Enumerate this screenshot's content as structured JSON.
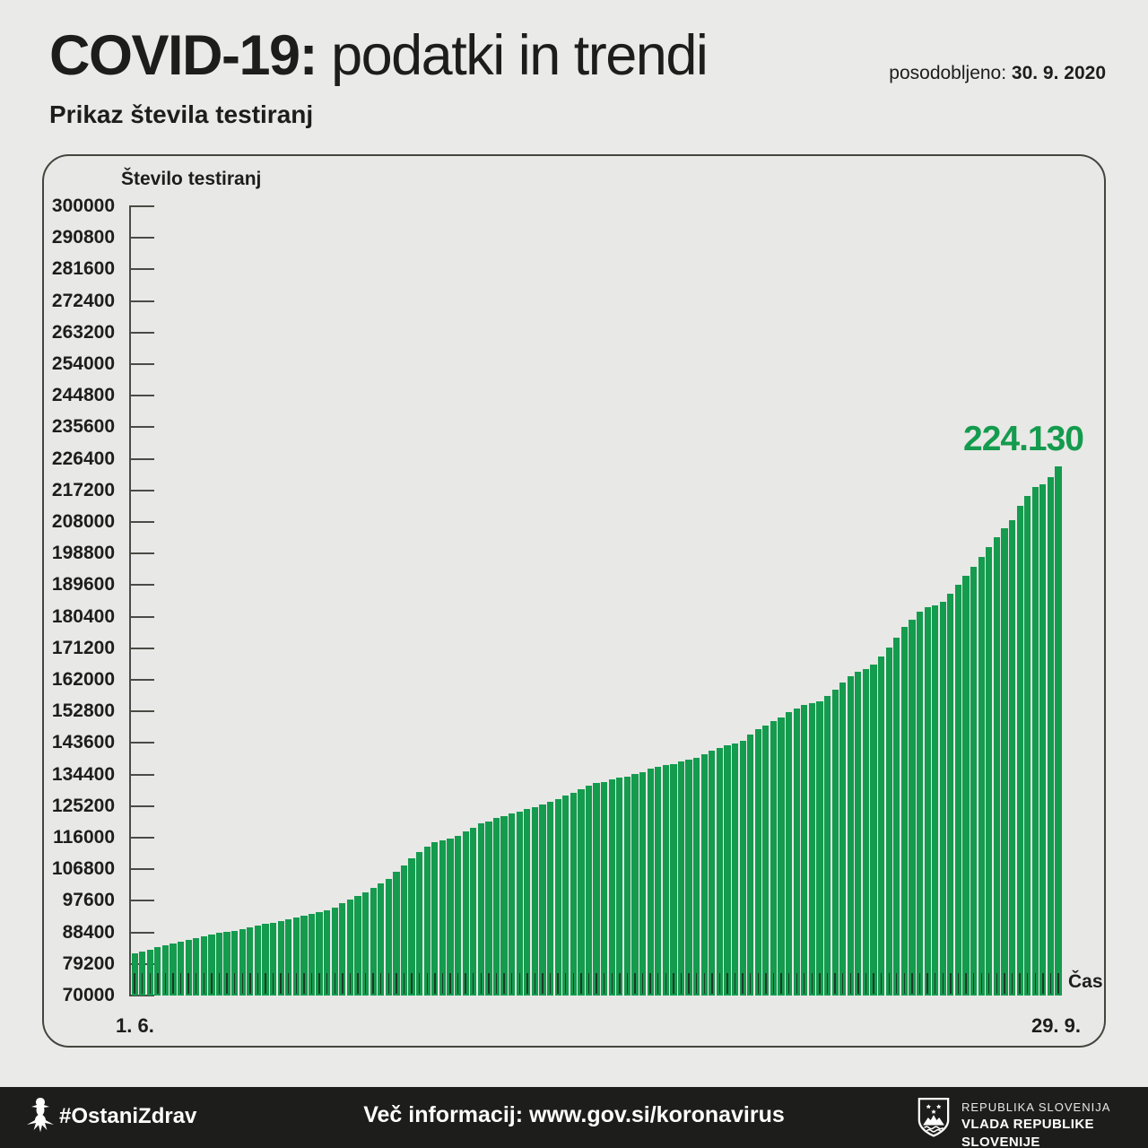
{
  "header": {
    "title_strong": "COVID-19:",
    "title_rest": " podatki in trendi",
    "subtitle": "Prikaz števila testiranj",
    "updated_label": "posodobljeno: ",
    "updated_value": "30. 9. 2020"
  },
  "chart_data": {
    "type": "bar",
    "title": "Prikaz števila testiranj",
    "ylabel": "Število testiranj",
    "xlabel": "Čas",
    "x_start_label": "1. 6.",
    "x_end_label": "29. 9.",
    "ylim": [
      70000,
      300000
    ],
    "ytick_step": 9200,
    "ytick_values": [
      300000,
      290800,
      281600,
      272400,
      263200,
      254000,
      244800,
      235600,
      226400,
      217200,
      208000,
      198800,
      189600,
      180400,
      171200,
      162000,
      152800,
      143600,
      134400,
      125200,
      116000,
      106800,
      97600,
      88400,
      79200,
      70000
    ],
    "grid": false,
    "legend": "none",
    "annotation": {
      "text": "224.130",
      "value": 224130
    },
    "values": [
      82200,
      82700,
      83400,
      84000,
      84600,
      85100,
      85600,
      86200,
      86700,
      87300,
      87800,
      88200,
      88600,
      88900,
      89300,
      89800,
      90300,
      90800,
      91300,
      91800,
      92300,
      92800,
      93300,
      93800,
      94200,
      94700,
      95700,
      96800,
      97900,
      99000,
      100000,
      101300,
      102700,
      104000,
      106000,
      108000,
      110000,
      111900,
      113400,
      114600,
      115200,
      115800,
      116500,
      117800,
      118900,
      120100,
      120800,
      121700,
      122400,
      123000,
      123600,
      124300,
      125000,
      125600,
      126500,
      127300,
      128200,
      129100,
      130200,
      131100,
      132000,
      132300,
      133000,
      133400,
      133900,
      134600,
      135200,
      136100,
      136700,
      137100,
      137400,
      138100,
      138700,
      139300,
      140400,
      141300,
      142200,
      142800,
      143500,
      144200,
      146000,
      147500,
      148800,
      150000,
      151000,
      152600,
      153700,
      154600,
      155200,
      155800,
      157400,
      159100,
      161300,
      163000,
      164300,
      165200,
      166500,
      168900,
      171300,
      174400,
      177400,
      179600,
      181800,
      183100,
      183700,
      184800,
      187000,
      189800,
      192200,
      195000,
      197900,
      200800,
      203500,
      206300,
      208600,
      212700,
      215600,
      218200,
      219000,
      221100,
      224130
    ]
  },
  "footer": {
    "hashtag": "#OstaniZdrav",
    "info": "Več informacij: www.gov.si/koronavirus",
    "gov_line1": "REPUBLIKA SLOVENIJA",
    "gov_line2": "VLADA REPUBLIKE SLOVENIJE"
  },
  "colors": {
    "bar_green": "#149b4e",
    "accent_green": "#149b4e",
    "footer_bg": "#1d1d1b",
    "page_bg": "#eaeae8",
    "text_dark": "#1d1d1b"
  }
}
